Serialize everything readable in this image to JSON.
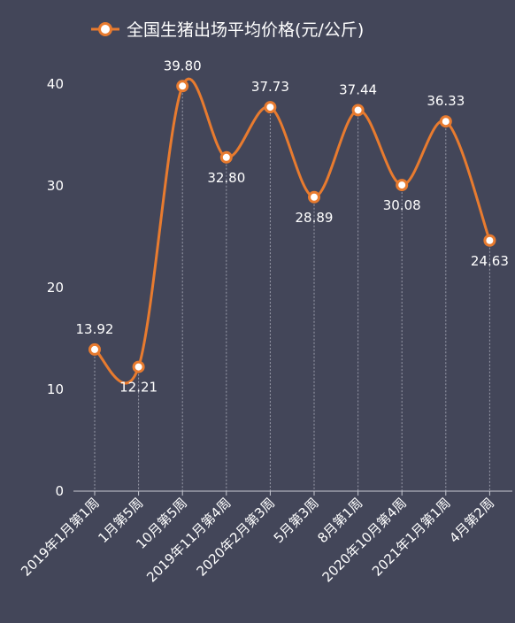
{
  "chart_data": {
    "type": "line",
    "title": "",
    "xlabel": "",
    "ylabel": "",
    "categories": [
      "2019年1月第1周",
      "1月第5周",
      "10月第5周",
      "2019年11月第4周",
      "2020年2月第3周",
      "5月第3周",
      "8月第1周",
      "2020年10月第4周",
      "2021年1月第1周",
      "4月第2周"
    ],
    "series": [
      {
        "name": "全国生猪出场平均价格(元/公斤)",
        "values": [
          13.92,
          12.21,
          39.8,
          32.8,
          37.73,
          28.89,
          37.44,
          30.08,
          36.33,
          24.63
        ],
        "labels": [
          "13.92",
          "12.21",
          "39.80",
          "32.80",
          "37.73",
          "28.89",
          "37.44",
          "30.08",
          "36.33",
          "24.63"
        ]
      }
    ],
    "ylim": [
      0,
      40
    ],
    "yticks": [
      0,
      10,
      20,
      30,
      40
    ],
    "grid": "vertical-dashed",
    "legend": "top-center",
    "colors": {
      "background": "#434659",
      "line": "#e87b2f",
      "text": "#ffffff",
      "dropline": "#9a9caa"
    }
  }
}
